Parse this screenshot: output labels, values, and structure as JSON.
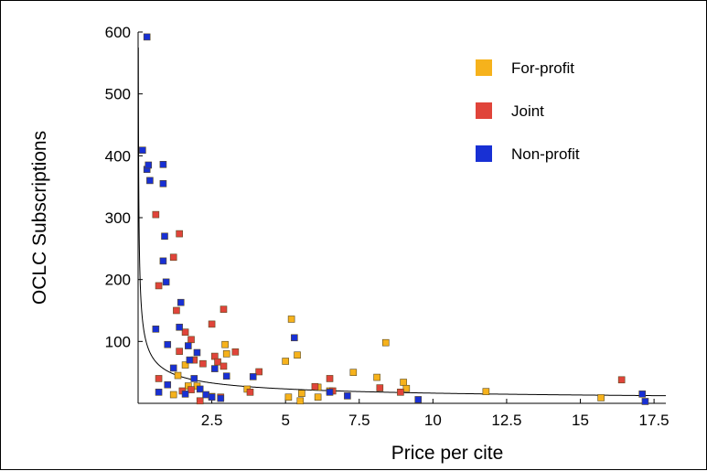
{
  "chart_data": {
    "type": "scatter",
    "title": "",
    "xlabel": "Price per cite",
    "ylabel": "OCLC Subscriptions",
    "xlim": [
      0,
      17.9
    ],
    "ylim": [
      0,
      600
    ],
    "x_ticks": [
      2.5,
      5,
      7.5,
      10,
      12.5,
      15,
      17.5
    ],
    "x_tick_labels": [
      "2.5",
      "5",
      "7.5",
      "10",
      "12.5",
      "15",
      "17.5"
    ],
    "y_ticks": [
      100,
      200,
      300,
      400,
      500,
      600
    ],
    "y_tick_labels": [
      "100",
      "200",
      "300",
      "400",
      "500",
      "600"
    ],
    "grid": false,
    "legend_position": "top-right",
    "fit_curve": {
      "type": "power",
      "a": 52,
      "b": -0.5
    },
    "series": [
      {
        "name": "For-profit",
        "color": "#f6b21c",
        "points": [
          [
            1.2,
            14
          ],
          [
            1.35,
            45
          ],
          [
            1.6,
            62
          ],
          [
            1.7,
            28
          ],
          [
            2.0,
            28
          ],
          [
            2.5,
            11
          ],
          [
            2.95,
            95
          ],
          [
            3.0,
            80
          ],
          [
            3.7,
            23
          ],
          [
            5.0,
            68
          ],
          [
            5.1,
            10
          ],
          [
            5.2,
            136
          ],
          [
            5.4,
            78
          ],
          [
            5.5,
            4
          ],
          [
            5.55,
            16
          ],
          [
            6.1,
            10
          ],
          [
            6.1,
            26
          ],
          [
            6.5,
            20
          ],
          [
            7.3,
            50
          ],
          [
            8.1,
            42
          ],
          [
            8.4,
            98
          ],
          [
            9.0,
            34
          ],
          [
            9.1,
            24
          ],
          [
            11.8,
            19
          ],
          [
            15.7,
            9
          ]
        ]
      },
      {
        "name": "Joint",
        "color": "#e0443a",
        "points": [
          [
            0.6,
            305
          ],
          [
            0.7,
            190
          ],
          [
            0.7,
            40
          ],
          [
            1.2,
            236
          ],
          [
            1.3,
            150
          ],
          [
            1.4,
            274
          ],
          [
            1.4,
            84
          ],
          [
            1.5,
            20
          ],
          [
            1.6,
            115
          ],
          [
            1.8,
            103
          ],
          [
            1.8,
            22
          ],
          [
            1.9,
            70
          ],
          [
            2.1,
            4
          ],
          [
            2.2,
            64
          ],
          [
            2.5,
            128
          ],
          [
            2.6,
            76
          ],
          [
            2.7,
            67
          ],
          [
            2.8,
            10
          ],
          [
            2.9,
            152
          ],
          [
            2.9,
            60
          ],
          [
            3.3,
            83
          ],
          [
            3.8,
            18
          ],
          [
            4.1,
            51
          ],
          [
            6.0,
            27
          ],
          [
            6.5,
            40
          ],
          [
            6.6,
            20
          ],
          [
            8.2,
            25
          ],
          [
            8.9,
            18
          ],
          [
            16.4,
            38
          ]
        ]
      },
      {
        "name": "Non-profit",
        "color": "#1830d4",
        "points": [
          [
            0.3,
            592
          ],
          [
            0.15,
            409
          ],
          [
            0.3,
            378
          ],
          [
            0.35,
            385
          ],
          [
            0.4,
            360
          ],
          [
            0.85,
            386
          ],
          [
            0.85,
            355
          ],
          [
            0.9,
            270
          ],
          [
            0.85,
            230
          ],
          [
            0.95,
            196
          ],
          [
            0.6,
            120
          ],
          [
            1.0,
            95
          ],
          [
            0.7,
            18
          ],
          [
            1.0,
            30
          ],
          [
            1.2,
            57
          ],
          [
            1.4,
            123
          ],
          [
            1.45,
            163
          ],
          [
            1.6,
            15
          ],
          [
            1.7,
            93
          ],
          [
            1.75,
            70
          ],
          [
            1.9,
            40
          ],
          [
            2.0,
            82
          ],
          [
            2.1,
            23
          ],
          [
            2.3,
            14
          ],
          [
            2.5,
            10
          ],
          [
            2.6,
            56
          ],
          [
            2.8,
            8
          ],
          [
            3.0,
            44
          ],
          [
            3.9,
            43
          ],
          [
            5.3,
            106
          ],
          [
            6.5,
            18
          ],
          [
            7.1,
            12
          ],
          [
            9.5,
            6
          ],
          [
            17.1,
            15
          ],
          [
            17.2,
            3
          ]
        ]
      }
    ]
  }
}
